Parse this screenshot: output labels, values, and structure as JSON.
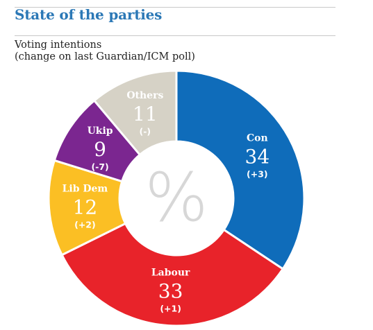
{
  "header": {
    "title": "State of the parties",
    "subtitle_line1": "Voting intentions",
    "subtitle_line2": "(change on last Guardian/ICM poll)"
  },
  "chart_data": {
    "type": "pie",
    "center_symbol": "%",
    "slices": [
      {
        "label": "Con",
        "value": 34,
        "change": "(+3)",
        "color": "#0f6cba"
      },
      {
        "label": "Labour",
        "value": 33,
        "change": "(+1)",
        "color": "#e8232a"
      },
      {
        "label": "Lib Dem",
        "value": 12,
        "change": "(+2)",
        "color": "#fbbf24"
      },
      {
        "label": "Ukip",
        "value": 9,
        "change": "(-7)",
        "color": "#7b2690"
      },
      {
        "label": "Others",
        "value": 11,
        "change": "(-)",
        "color": "#d6d2c6"
      }
    ]
  }
}
